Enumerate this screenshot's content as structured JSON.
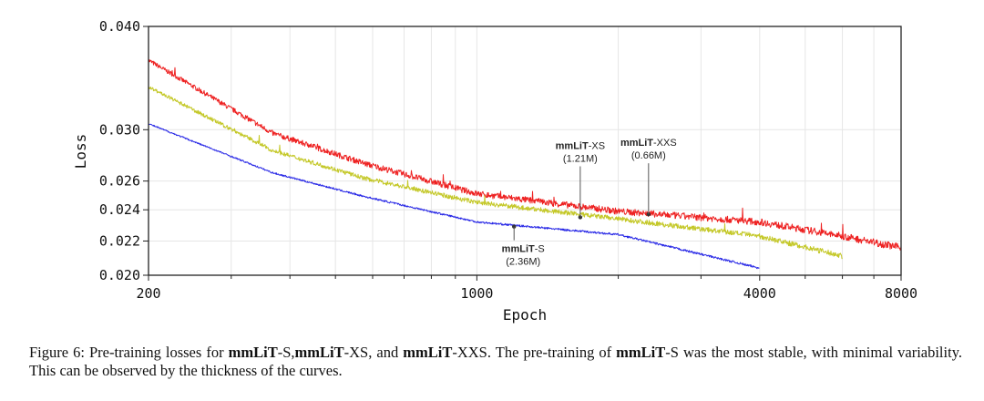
{
  "chart_data": {
    "type": "line",
    "title": "",
    "xlabel": "Epoch",
    "ylabel": "Loss",
    "xscale": "log",
    "yscale": "log",
    "xlim": [
      200,
      8000
    ],
    "ylim": [
      0.02,
      0.04
    ],
    "xticks": [
      200,
      1000,
      4000,
      8000
    ],
    "xtick_labels": [
      "200",
      "1000",
      "4000",
      "8000"
    ],
    "yticks": [
      0.02,
      0.022,
      0.024,
      0.026,
      0.03,
      0.04
    ],
    "ytick_labels": [
      "0.020",
      "0.022",
      "0.024",
      "0.026",
      "0.030",
      "0.040"
    ],
    "grid": true,
    "series": [
      {
        "name": "mmLiT-XXS",
        "color": "#ee2222",
        "x": [
          200,
          368,
          577,
          1000,
          2000,
          4000,
          6000,
          8000
        ],
        "y": [
          0.0364,
          0.0297,
          0.0273,
          0.0251,
          0.0239,
          0.0232,
          0.0223,
          0.0216
        ]
      },
      {
        "name": "mmLiT-XS",
        "color": "#c4c828",
        "x": [
          200,
          368,
          577,
          1000,
          2000,
          4000,
          6000
        ],
        "y": [
          0.0338,
          0.0283,
          0.0262,
          0.0245,
          0.0234,
          0.0223,
          0.0211
        ]
      },
      {
        "name": "mmLiT-S",
        "color": "#2a2ae6",
        "x": [
          200,
          368,
          577,
          1000,
          2000,
          4000
        ],
        "y": [
          0.0305,
          0.0266,
          0.0249,
          0.0232,
          0.0224,
          0.0204
        ]
      }
    ],
    "annotations": [
      {
        "bold": "mmLiT",
        "suffix": "-S",
        "params": "(2.36M)",
        "epoch": 1200,
        "loss": 0.0229,
        "position": "below"
      },
      {
        "bold": "mmLiT",
        "suffix": "-XS",
        "params": "(1.21M)",
        "epoch": 1660,
        "loss": 0.0235,
        "position": "above"
      },
      {
        "bold": "mmLiT",
        "suffix": "-XXS",
        "params": "(0.66M)",
        "epoch": 2320,
        "loss": 0.0237,
        "position": "above"
      }
    ]
  },
  "caption": [
    {
      "text": "Figure 6:  Pre-training losses for ",
      "bold": false
    },
    {
      "text": "mmLiT",
      "bold": true
    },
    {
      "text": "-S,",
      "bold": false
    },
    {
      "text": "mmLiT",
      "bold": true
    },
    {
      "text": "-XS, and ",
      "bold": false
    },
    {
      "text": "mmLiT",
      "bold": true
    },
    {
      "text": "-XXS. The pre-training of ",
      "bold": false
    },
    {
      "text": "mmLiT",
      "bold": true
    },
    {
      "text": "-S was the most stable, with minimal variability. This can be observed by the thickness of the curves.",
      "bold": false
    }
  ]
}
